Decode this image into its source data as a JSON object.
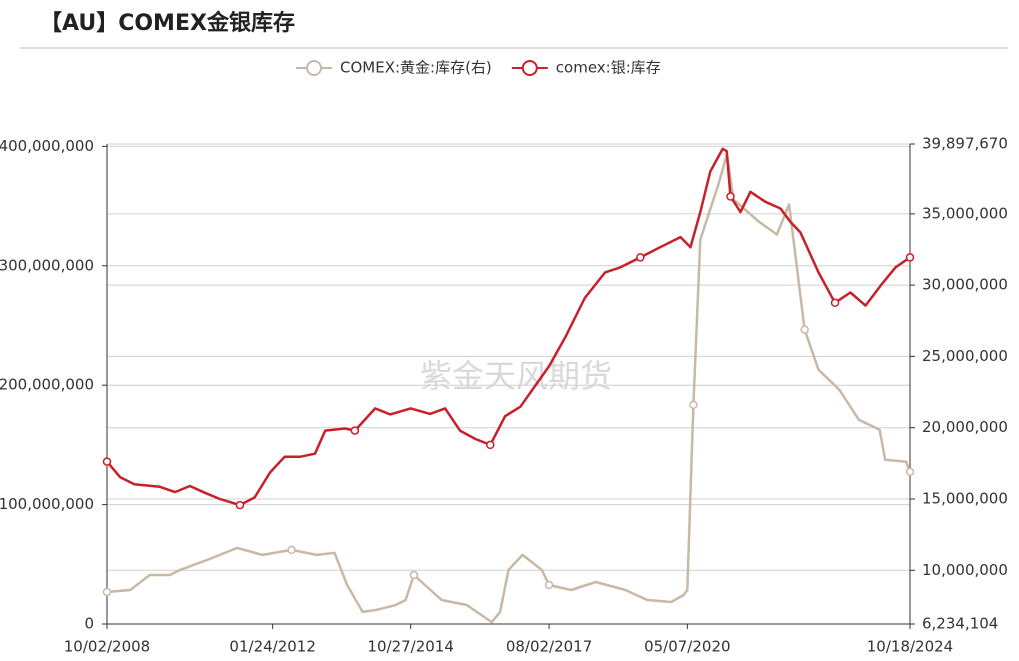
{
  "chart_data": {
    "type": "line",
    "title": "【AU】COMEX金银库存",
    "watermark": "紫金天风期货",
    "xlim": [
      "2008-10-02",
      "2024-10-18"
    ],
    "xticks": [
      {
        "value": "2008-10-02",
        "label": "10/02/2008"
      },
      {
        "value": "2012-01-24",
        "label": "01/24/2012"
      },
      {
        "value": "2014-10-27",
        "label": "10/27/2014"
      },
      {
        "value": "2017-08-02",
        "label": "08/02/2017"
      },
      {
        "value": "2020-05-07",
        "label": "05/07/2020"
      },
      {
        "value": "2024-10-18",
        "label": "10/18/2024"
      }
    ],
    "ylim": [
      0,
      402000000
    ],
    "yticks": [
      0,
      {
        "value": 100000000,
        "label": "100,000,000"
      },
      {
        "value": 200000000,
        "label": "200,000,000"
      },
      {
        "value": 300000000,
        "label": "300,000,000"
      },
      {
        "value": 400000000,
        "label": "400,000,000"
      }
    ],
    "y2lim": [
      6234104,
      39897670
    ],
    "y2ticks": [
      {
        "value": 6234104,
        "label": "6,234,104"
      },
      {
        "value": 10000000,
        "label": "10,000,000"
      },
      {
        "value": 15000000,
        "label": "15,000,000"
      },
      {
        "value": 20000000,
        "label": "20,000,000"
      },
      {
        "value": 25000000,
        "label": "25,000,000"
      },
      {
        "value": 30000000,
        "label": "30,000,000"
      },
      {
        "value": 35000000,
        "label": "35,000,000"
      },
      {
        "value": 39897670,
        "label": "39,897,670"
      }
    ],
    "grid": true,
    "legend": "top",
    "series": [
      {
        "name": "COMEX:黄金:库存(右)",
        "color": "#c8b9a6",
        "axis": "y2",
        "x": [
          "2008-10-02",
          "2009-03-20",
          "2009-08-10",
          "2010-01-05",
          "2010-03-20",
          "2010-11-10",
          "2011-05-10",
          "2011-11-10",
          "2012-06-10",
          "2012-12-10",
          "2013-04-20",
          "2013-07-20",
          "2013-11-10",
          "2014-02-20",
          "2014-07-10",
          "2014-09-20",
          "2014-11-20",
          "2015-06-10",
          "2015-12-10",
          "2016-06-10",
          "2016-08-10",
          "2016-10-10",
          "2017-01-20",
          "2017-06-10",
          "2017-08-02",
          "2018-01-10",
          "2018-07-10",
          "2019-02-10",
          "2019-07-20",
          "2020-01-10",
          "2020-04-10",
          "2020-05-07",
          "2020-06-20",
          "2020-08-10",
          "2020-12-20",
          "2021-02-20",
          "2021-04-10",
          "2021-10-10",
          "2022-02-20",
          "2022-05-20",
          "2022-09-10",
          "2022-12-20",
          "2023-05-20",
          "2023-10-10",
          "2024-03-10",
          "2024-04-20",
          "2024-09-20",
          "2024-10-18"
        ],
        "values": [
          8480000,
          8620000,
          9670000,
          9670000,
          10030000,
          10870000,
          11570000,
          11080000,
          11430000,
          11080000,
          11220000,
          8970000,
          7080000,
          7220000,
          7570000,
          7920000,
          9670000,
          7920000,
          7570000,
          6370000,
          7080000,
          10030000,
          11080000,
          10030000,
          8970000,
          8620000,
          9180000,
          8620000,
          7920000,
          7780000,
          8270000,
          8620000,
          21610000,
          33200000,
          37060000,
          39170000,
          36000000,
          34460000,
          33550000,
          35660000,
          26880000,
          24070000,
          22670000,
          20560000,
          19860000,
          17750000,
          17610000,
          16910000
        ]
      },
      {
        "name": "comex:银:库存",
        "color": "#c8202a",
        "x": [
          "2008-10-02",
          "2009-01-05",
          "2009-04-20",
          "2009-10-20",
          "2010-02-10",
          "2010-05-30",
          "2010-09-15",
          "2011-01-05",
          "2011-05-30",
          "2011-09-15",
          "2012-01-05",
          "2012-04-20",
          "2012-08-10",
          "2012-11-28",
          "2013-02-10",
          "2013-07-05",
          "2013-09-15",
          "2014-02-10",
          "2014-05-30",
          "2014-10-27",
          "2015-03-18",
          "2015-07-05",
          "2015-10-22",
          "2016-02-10",
          "2016-05-30",
          "2016-09-15",
          "2017-01-05",
          "2017-08-02",
          "2017-11-28",
          "2018-04-20",
          "2018-09-15",
          "2019-01-05",
          "2019-05-30",
          "2019-10-22",
          "2020-03-18",
          "2020-05-30",
          "2020-08-10",
          "2020-10-22",
          "2021-01-20",
          "2021-02-18",
          "2021-03-18",
          "2021-05-30",
          "2021-08-10",
          "2021-11-28",
          "2022-03-18",
          "2022-05-30",
          "2022-08-10",
          "2022-12-20",
          "2023-04-20",
          "2023-08-10",
          "2023-11-28",
          "2024-03-18",
          "2024-07-05",
          "2024-10-18"
        ],
        "values": [
          136000000,
          123000000,
          117000000,
          115000000,
          110500000,
          115600000,
          110000000,
          104600000,
          99600000,
          106000000,
          127000000,
          140000000,
          140000000,
          142600000,
          162000000,
          163700000,
          162000000,
          180600000,
          175500000,
          180600000,
          176000000,
          180600000,
          162000000,
          155000000,
          150000000,
          174000000,
          182000000,
          216000000,
          240000000,
          273000000,
          294500000,
          298700000,
          307000000,
          315600000,
          324000000,
          315600000,
          345000000,
          379000000,
          398000000,
          396000000,
          358000000,
          345000000,
          362000000,
          353600000,
          348000000,
          336700000,
          328000000,
          294500000,
          269000000,
          277600000,
          266700000,
          283500000,
          298700000,
          307000000
        ]
      }
    ]
  }
}
